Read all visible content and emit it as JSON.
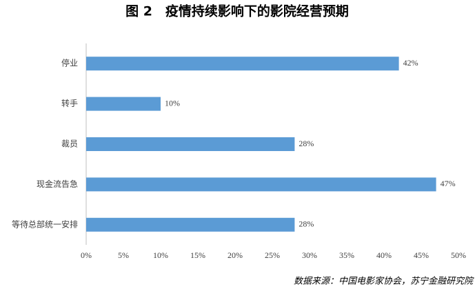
{
  "chart_data": {
    "type": "bar",
    "orientation": "horizontal",
    "title": "图 2　疫情持续影响下的影院经营预期",
    "categories": [
      "停业",
      "转手",
      "裁员",
      "现金流告急",
      "等待总部统一安排"
    ],
    "values": [
      42,
      10,
      28,
      47,
      28
    ],
    "value_labels": [
      "42%",
      "10%",
      "28%",
      "47%",
      "28%"
    ],
    "color": "#5b9bd5",
    "xlim": [
      0,
      50
    ],
    "xticks": [
      {
        "value": 0,
        "label": "0%"
      },
      {
        "value": 5,
        "label": "5%"
      },
      {
        "value": 10,
        "label": "10%"
      },
      {
        "value": 15,
        "label": "15%"
      },
      {
        "value": 20,
        "label": "20%"
      },
      {
        "value": 25,
        "label": "25%"
      },
      {
        "value": 30,
        "label": "30%"
      },
      {
        "value": 35,
        "label": "35%"
      },
      {
        "value": 40,
        "label": "40%"
      },
      {
        "value": 45,
        "label": "45%"
      },
      {
        "value": 50,
        "label": "50%"
      }
    ],
    "grid": false,
    "source": "数据来源：中国电影家协会，苏宁金融研究院"
  }
}
